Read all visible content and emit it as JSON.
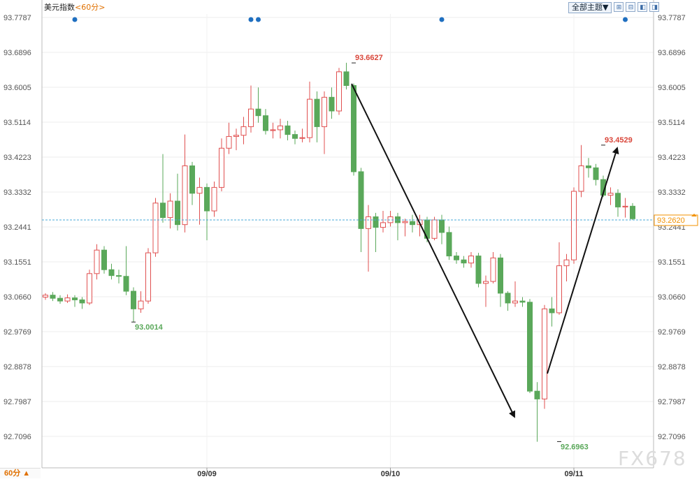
{
  "header": {
    "instrument": "美元指数",
    "period": "<60分>"
  },
  "toolbar": {
    "theme_label": "全部主题▼",
    "icons": [
      "zoom-in-icon",
      "zoom-out-icon",
      "scroll-left-icon",
      "scroll-right-icon"
    ]
  },
  "footer": {
    "period_selector": "60分 ▲"
  },
  "watermark": "FX678",
  "colors": {
    "up": "#e05050",
    "down": "#5aa85a",
    "event_dot": "#1f6fc0",
    "price_line": "#4aa8d8",
    "price_tag": "#f29100"
  },
  "chart_data": {
    "type": "candlestick",
    "y_ticks": [
      "93.7787",
      "93.6896",
      "93.6005",
      "93.5114",
      "93.4223",
      "93.3332",
      "93.2441",
      "93.1551",
      "93.0660",
      "92.9769",
      "92.8878",
      "92.7987",
      "92.7096"
    ],
    "ylim": [
      92.69,
      93.79
    ],
    "x_labels": [
      {
        "label": "09/09",
        "index": 22
      },
      {
        "label": "09/10",
        "index": 47
      },
      {
        "label": "09/11",
        "index": 72
      }
    ],
    "current_price": "93.2620",
    "current_price_value": 93.262,
    "annotations": [
      {
        "label": "93.6627",
        "value": 93.6627,
        "index": 42,
        "kind": "high"
      },
      {
        "label": "93.0014",
        "value": 93.0014,
        "index": 12,
        "kind": "low"
      },
      {
        "label": "92.6963",
        "value": 92.6963,
        "index": 70,
        "kind": "low"
      },
      {
        "label": "93.4529",
        "value": 93.4529,
        "index": 76,
        "kind": "high"
      }
    ],
    "event_dots": [
      4,
      28,
      29,
      54,
      79
    ],
    "candles": [
      [
        93.065,
        93.07,
        93.075,
        93.058
      ],
      [
        93.07,
        93.062,
        93.078,
        93.055
      ],
      [
        93.062,
        93.055,
        93.07,
        93.048
      ],
      [
        93.055,
        93.063,
        93.072,
        93.05
      ],
      [
        93.063,
        93.058,
        93.07,
        93.04
      ],
      [
        93.058,
        93.05,
        93.065,
        93.035
      ],
      [
        93.05,
        93.125,
        93.135,
        93.045
      ],
      [
        93.125,
        93.185,
        93.2,
        93.11
      ],
      [
        93.185,
        93.135,
        93.195,
        93.125
      ],
      [
        93.135,
        93.12,
        93.15,
        93.11
      ],
      [
        93.12,
        93.118,
        93.135,
        93.1
      ],
      [
        93.118,
        93.08,
        93.195,
        93.07
      ],
      [
        93.08,
        93.035,
        93.09,
        93.001
      ],
      [
        93.035,
        93.055,
        93.08,
        93.025
      ],
      [
        93.055,
        93.178,
        93.19,
        93.048
      ],
      [
        93.178,
        93.305,
        93.318,
        93.168
      ],
      [
        93.305,
        93.268,
        93.43,
        93.255
      ],
      [
        93.268,
        93.31,
        93.33,
        93.24
      ],
      [
        93.31,
        93.25,
        93.38,
        93.235
      ],
      [
        93.25,
        93.4,
        93.48,
        93.23
      ],
      [
        93.4,
        93.33,
        93.41,
        93.3
      ],
      [
        93.33,
        93.345,
        93.37,
        93.25
      ],
      [
        93.345,
        93.285,
        93.355,
        93.21
      ],
      [
        93.285,
        93.345,
        93.36,
        93.27
      ],
      [
        93.345,
        93.445,
        93.47,
        93.335
      ],
      [
        93.445,
        93.475,
        93.51,
        93.43
      ],
      [
        93.475,
        93.478,
        93.495,
        93.44
      ],
      [
        93.478,
        93.5,
        93.525,
        93.455
      ],
      [
        93.5,
        93.545,
        93.605,
        93.485
      ],
      [
        93.545,
        93.528,
        93.6,
        93.51
      ],
      [
        93.528,
        93.49,
        93.545,
        93.48
      ],
      [
        93.49,
        93.492,
        93.51,
        93.47
      ],
      [
        93.492,
        93.502,
        93.52,
        93.47
      ],
      [
        93.502,
        93.48,
        93.515,
        93.465
      ],
      [
        93.48,
        93.47,
        93.49,
        93.455
      ],
      [
        93.47,
        93.472,
        93.495,
        93.46
      ],
      [
        93.472,
        93.57,
        93.615,
        93.46
      ],
      [
        93.57,
        93.5,
        93.59,
        93.46
      ],
      [
        93.5,
        93.575,
        93.59,
        93.43
      ],
      [
        93.575,
        93.54,
        93.6,
        93.52
      ],
      [
        93.54,
        93.64,
        93.65,
        93.53
      ],
      [
        93.64,
        93.605,
        93.663,
        93.595
      ],
      [
        93.605,
        93.385,
        93.61,
        93.375
      ],
      [
        93.385,
        93.24,
        93.395,
        93.18
      ],
      [
        93.24,
        93.27,
        93.3,
        93.13
      ],
      [
        93.27,
        93.243,
        93.28,
        93.18
      ],
      [
        93.243,
        93.255,
        93.285,
        93.23
      ],
      [
        93.255,
        93.27,
        93.285,
        93.245
      ],
      [
        93.27,
        93.255,
        93.28,
        93.21
      ],
      [
        93.255,
        93.258,
        93.265,
        93.22
      ],
      [
        93.258,
        93.25,
        93.275,
        93.23
      ],
      [
        93.25,
        93.262,
        93.275,
        93.22
      ],
      [
        93.262,
        93.215,
        93.27,
        93.205
      ],
      [
        93.215,
        93.262,
        93.27,
        93.21
      ],
      [
        93.262,
        93.23,
        93.275,
        93.2
      ],
      [
        93.23,
        93.17,
        93.245,
        93.16
      ],
      [
        93.17,
        93.16,
        93.18,
        93.15
      ],
      [
        93.16,
        93.152,
        93.17,
        93.14
      ],
      [
        93.152,
        93.17,
        93.18,
        93.14
      ],
      [
        93.17,
        93.1,
        93.178,
        93.09
      ],
      [
        93.1,
        93.105,
        93.12,
        93.04
      ],
      [
        93.105,
        93.165,
        93.18,
        93.1
      ],
      [
        93.165,
        93.075,
        93.175,
        93.04
      ],
      [
        93.075,
        93.05,
        93.08,
        93.03
      ],
      [
        93.05,
        93.055,
        93.105,
        93.04
      ],
      [
        93.055,
        93.052,
        93.065,
        93.04
      ],
      [
        93.052,
        92.825,
        93.06,
        92.82
      ],
      [
        92.825,
        92.805,
        92.848,
        92.696
      ],
      [
        92.805,
        93.035,
        93.045,
        92.78
      ],
      [
        93.035,
        93.025,
        93.065,
        92.99
      ],
      [
        93.025,
        93.145,
        93.205,
        93.02
      ],
      [
        93.145,
        93.16,
        93.175,
        93.105
      ],
      [
        93.16,
        93.335,
        93.345,
        93.15
      ],
      [
        93.335,
        93.4,
        93.453,
        93.32
      ],
      [
        93.4,
        93.395,
        93.42,
        93.37
      ],
      [
        93.395,
        93.365,
        93.405,
        93.35
      ],
      [
        93.365,
        93.325,
        93.375,
        93.32
      ],
      [
        93.325,
        93.33,
        93.345,
        93.3
      ],
      [
        93.33,
        93.295,
        93.34,
        93.27
      ],
      [
        93.295,
        93.297,
        93.318,
        93.268
      ],
      [
        93.297,
        93.265,
        93.305,
        93.262
      ]
    ]
  }
}
